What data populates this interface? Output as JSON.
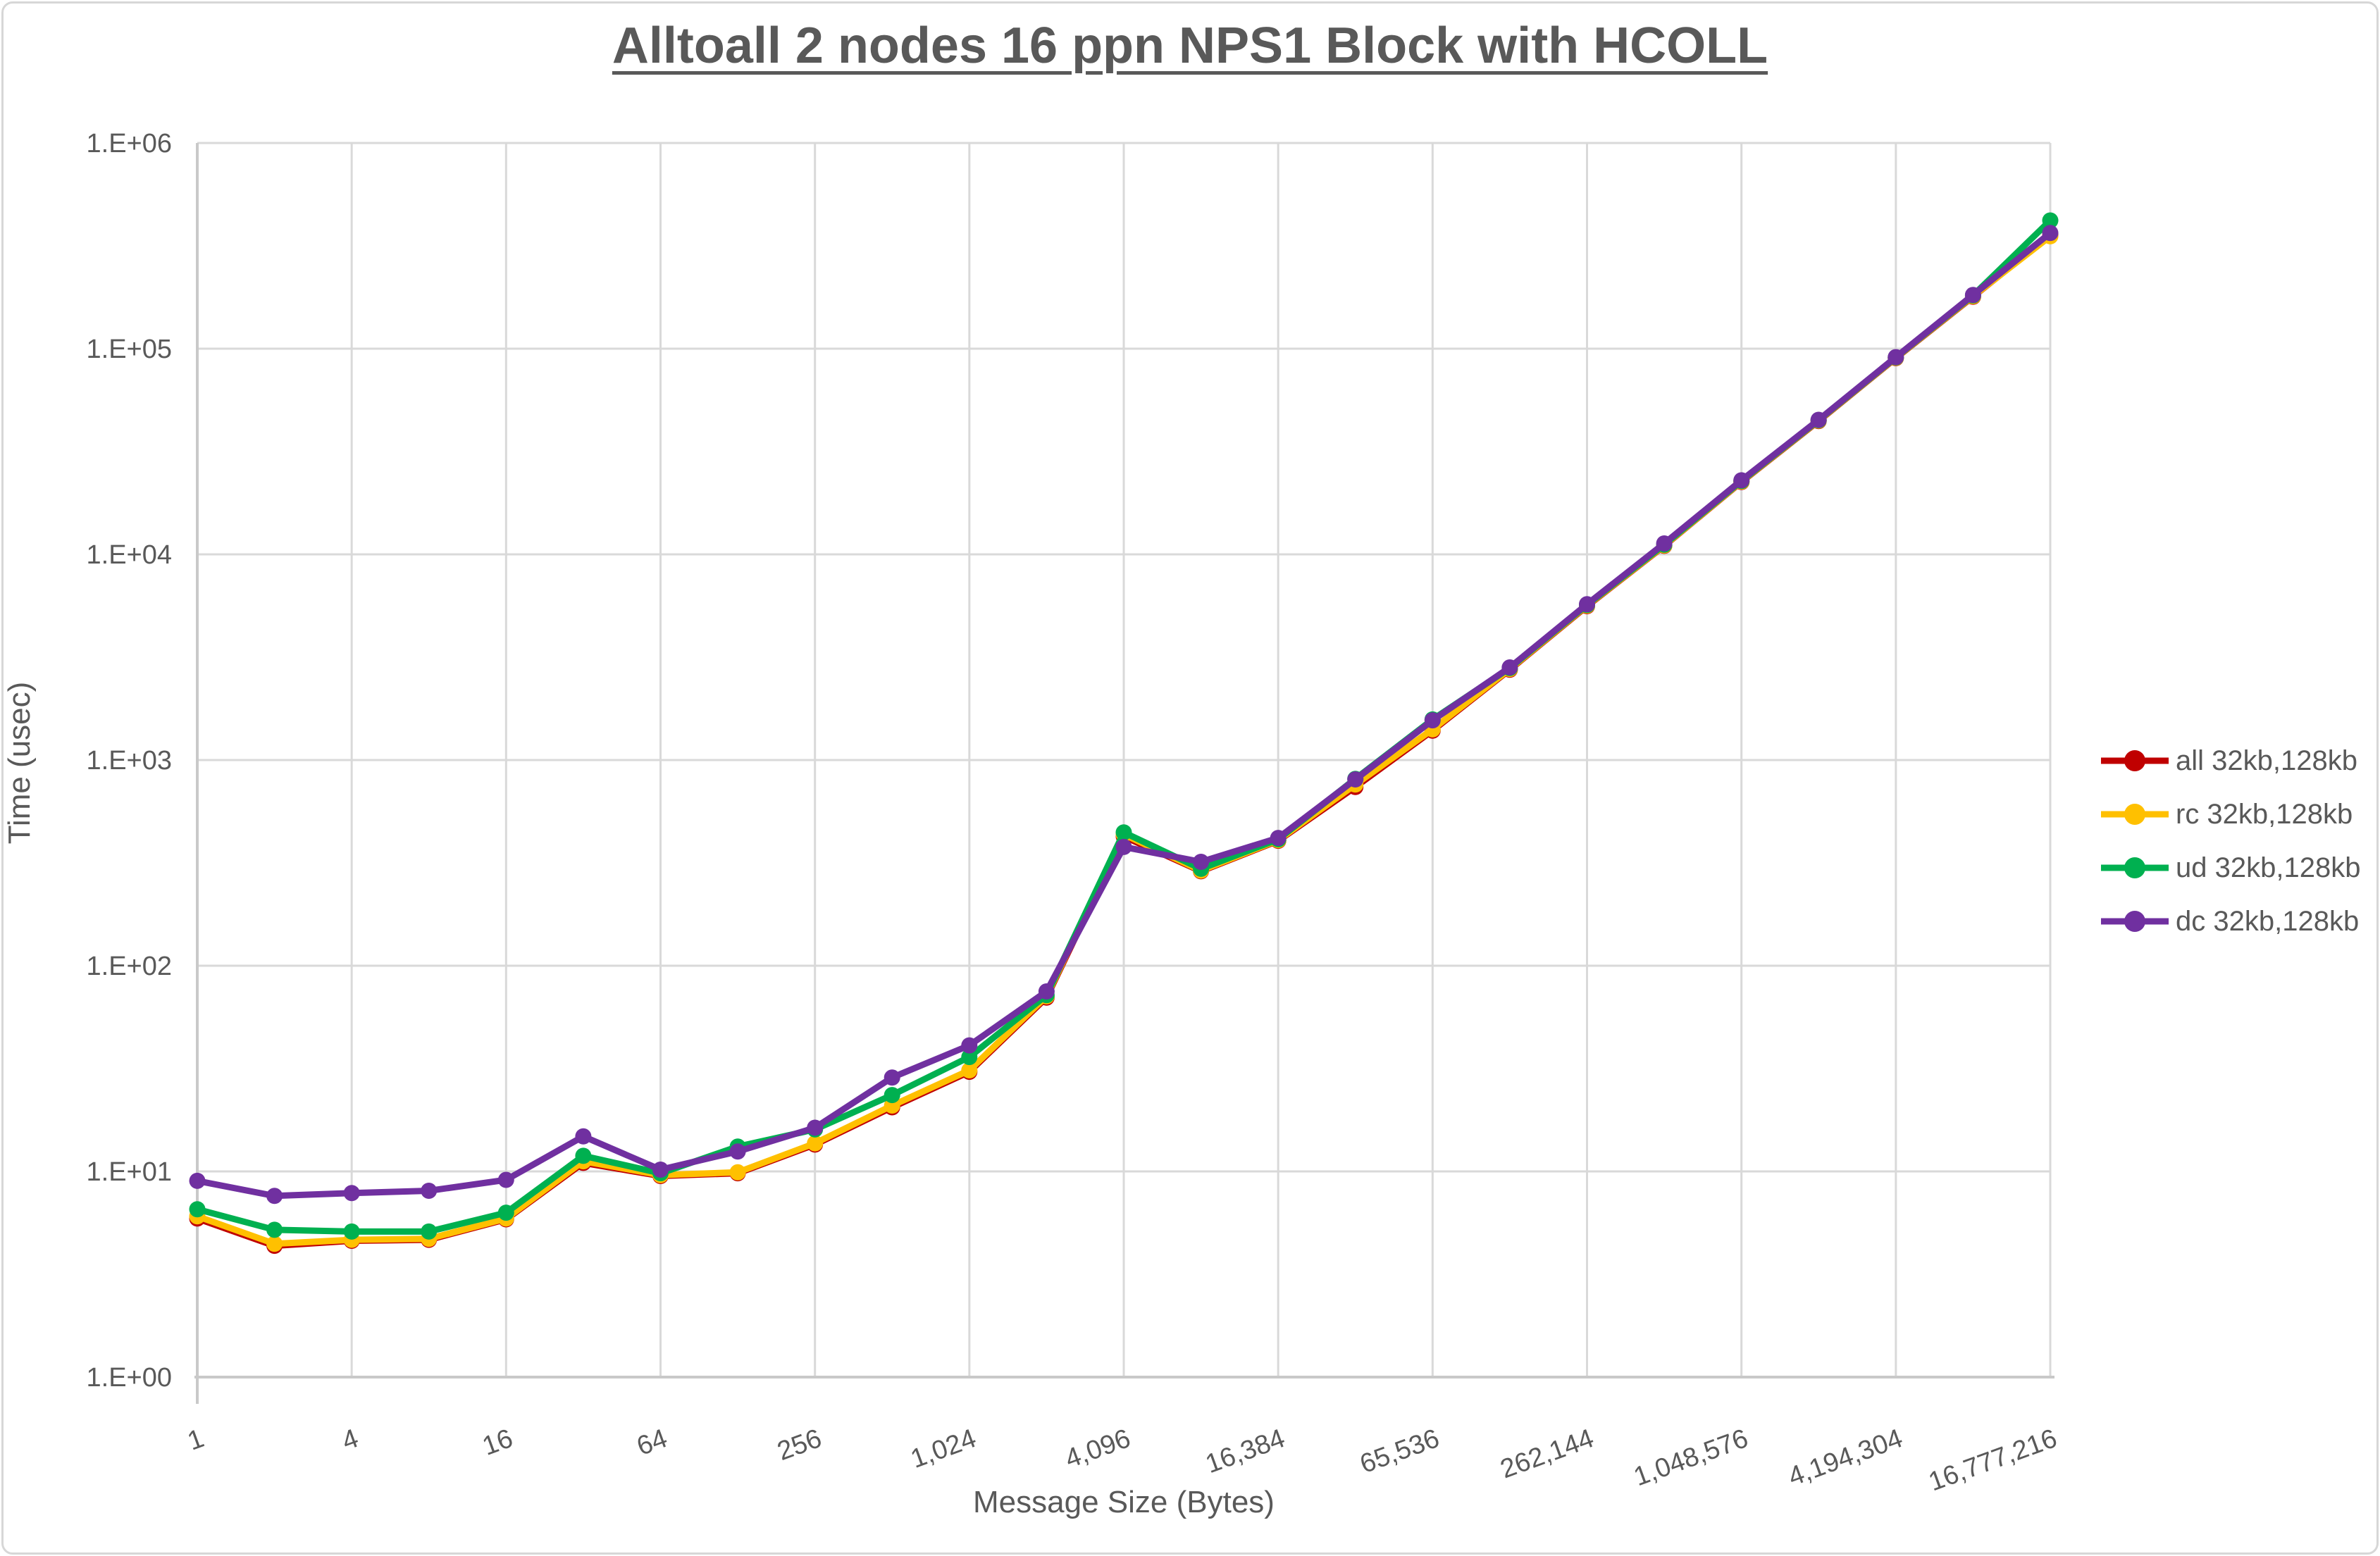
{
  "title": "Alltoall 2 nodes 16 ppn NPS1 Block with HCOLL",
  "chart_data": {
    "type": "line",
    "title": "Alltoall 2 nodes 16 ppn NPS1 Block with HCOLL",
    "xlabel": "Message Size (Bytes)",
    "ylabel": "Time (usec)",
    "x_scale": "log2",
    "y_scale": "log10",
    "xlim": [
      1,
      16777216
    ],
    "ylim": [
      1,
      1000000
    ],
    "grid": true,
    "legend_position": "right-middle",
    "x_tick_values": [
      1,
      4,
      16,
      64,
      256,
      1024,
      4096,
      16384,
      65536,
      262144,
      1048576,
      4194304,
      16777216
    ],
    "x_tick_labels": [
      "1",
      "4",
      "16",
      "64",
      "256",
      "1,024",
      "4,096",
      "16,384",
      "65,536",
      "262,144",
      "1,048,576",
      "4,194,304",
      "16,777,216"
    ],
    "y_tick_values": [
      1,
      10,
      100,
      1000,
      10000,
      100000,
      1000000
    ],
    "y_tick_labels": [
      "1.E+00",
      "1.E+01",
      "1.E+02",
      "1.E+03",
      "1.E+04",
      "1.E+05",
      "1.E+06"
    ],
    "x": [
      1,
      2,
      4,
      8,
      16,
      32,
      64,
      128,
      256,
      512,
      1024,
      2048,
      4096,
      8192,
      16384,
      32768,
      65536,
      131072,
      262144,
      524288,
      1048576,
      2097152,
      4194304,
      8388608,
      16777216
    ],
    "series": [
      {
        "name": "all 32kb,128kb",
        "color": "#C00000",
        "values": [
          5.9,
          4.35,
          4.6,
          4.65,
          5.85,
          11.0,
          9.5,
          9.8,
          13.5,
          20.5,
          30.5,
          70,
          425,
          288,
          405,
          740,
          1390,
          2750,
          5600,
          11000,
          22500,
          44500,
          90000,
          179000,
          357000
        ]
      },
      {
        "name": "rc 32kb,128kb",
        "color": "#FFC000",
        "values": [
          6.05,
          4.45,
          4.65,
          4.7,
          5.9,
          11.2,
          9.6,
          9.9,
          13.7,
          20.9,
          31,
          71,
          435,
          290,
          408,
          760,
          1410,
          2770,
          5640,
          11050,
          22600,
          44700,
          90300,
          180000,
          352000
        ]
      },
      {
        "name": "ud 32kb,128kb",
        "color": "#00B050",
        "values": [
          6.55,
          5.2,
          5.1,
          5.1,
          6.3,
          11.9,
          9.8,
          13.2,
          16.0,
          23.5,
          36,
          72,
          445,
          296,
          412,
          810,
          1575,
          2800,
          5680,
          11150,
          22750,
          44900,
          90700,
          181500,
          420000
        ]
      },
      {
        "name": "dc 32kb,128kb",
        "color": "#7030A0",
        "values": [
          9.0,
          7.6,
          7.85,
          8.05,
          9.1,
          14.8,
          10.2,
          12.5,
          16.3,
          28.6,
          41,
          75,
          378,
          320,
          418,
          805,
          1560,
          2820,
          5720,
          11300,
          22900,
          45100,
          91000,
          182500,
          365000
        ]
      }
    ]
  },
  "colors": {
    "text": "#595959",
    "grid": "#D9D9D9",
    "axis": "#C9C9C9",
    "background": "#FFFFFF",
    "border": "#D7D7D7"
  }
}
